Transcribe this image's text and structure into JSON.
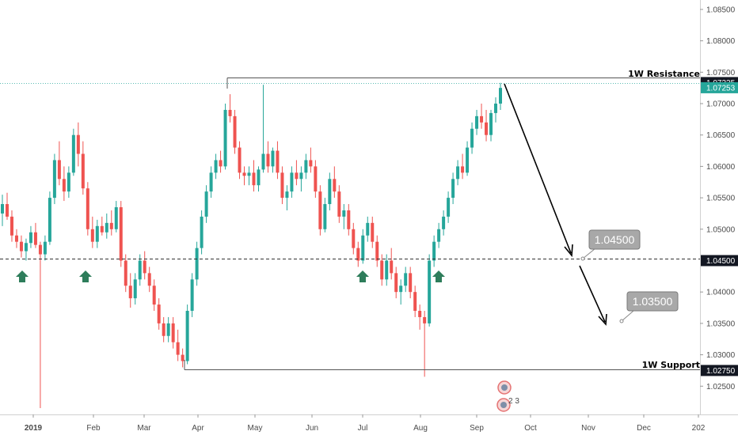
{
  "chart_data": {
    "type": "candlestick",
    "instrument_hint": "",
    "x_ticks": [
      "2019",
      "Feb",
      "Mar",
      "Apr",
      "May",
      "Jun",
      "Jul",
      "Aug",
      "Sep",
      "Oct",
      "Nov",
      "Dec",
      "202"
    ],
    "y_ticks": [
      "1.08500",
      "1.08000",
      "1.07500",
      "1.07000",
      "1.06500",
      "1.06000",
      "1.05500",
      "1.05000",
      "1.04000",
      "1.03500",
      "1.03000",
      "1.02500"
    ],
    "ylim": [
      1.0205,
      1.0865
    ],
    "grid": false,
    "price_tags": [
      {
        "label": "1.07335",
        "value": 1.07335,
        "style": "dark"
      },
      {
        "label": "1.07253",
        "value": 1.07253,
        "style": "teal"
      },
      {
        "label": "1.04500",
        "value": 1.045,
        "style": "dark"
      },
      {
        "label": "1.02750",
        "value": 1.0275,
        "style": "dark"
      }
    ],
    "levels": [
      {
        "name": "1W Resistance",
        "value": 1.07335
      },
      {
        "name": "1W Support",
        "value": 1.0275
      },
      {
        "name": "",
        "value": 1.045,
        "style": "dashed"
      }
    ],
    "callouts": [
      "1.04500",
      "1.03500"
    ],
    "markers": [
      "up-arrow",
      "up-arrow",
      "up-arrow",
      "up-arrow"
    ],
    "event_badge_text": "2 3",
    "colors": {
      "up": "#26a69a",
      "down": "#ef5350",
      "teal_tag": "#26a69a",
      "dark_tag": "#131722",
      "arrow_marker": "#2e7d5b",
      "callout_bg": "#a8a8a8"
    },
    "candles": [
      [
        1.0525,
        1.0555,
        1.0505,
        1.054
      ],
      [
        1.054,
        1.0558,
        1.0515,
        1.052
      ],
      [
        1.052,
        1.053,
        1.048,
        1.049
      ],
      [
        1.049,
        1.05,
        1.047,
        1.048
      ],
      [
        1.048,
        1.049,
        1.0455,
        1.0465
      ],
      [
        1.0465,
        1.0485,
        1.045,
        1.0478
      ],
      [
        1.0478,
        1.0505,
        1.047,
        1.0495
      ],
      [
        1.0495,
        1.051,
        1.047,
        1.0475
      ],
      [
        1.0475,
        1.048,
        1.0215,
        1.046
      ],
      [
        1.046,
        1.049,
        1.045,
        1.048
      ],
      [
        1.048,
        1.056,
        1.0475,
        1.055
      ],
      [
        1.055,
        1.062,
        1.054,
        1.061
      ],
      [
        1.061,
        1.064,
        1.057,
        1.058
      ],
      [
        1.058,
        1.06,
        1.0545,
        1.056
      ],
      [
        1.056,
        1.06,
        1.055,
        1.059
      ],
      [
        1.059,
        1.066,
        1.0585,
        1.065
      ],
      [
        1.065,
        1.067,
        1.06,
        1.062
      ],
      [
        1.062,
        1.064,
        1.0555,
        1.0565
      ],
      [
        1.0565,
        1.0575,
        1.049,
        1.05
      ],
      [
        1.05,
        1.052,
        1.047,
        1.048
      ],
      [
        1.048,
        1.0515,
        1.047,
        1.0505
      ],
      [
        1.0505,
        1.052,
        1.049,
        1.0495
      ],
      [
        1.0495,
        1.0525,
        1.0485,
        1.051
      ],
      [
        1.051,
        1.053,
        1.049,
        1.05
      ],
      [
        1.05,
        1.0545,
        1.0495,
        1.0535
      ],
      [
        1.0535,
        1.0545,
        1.044,
        1.045
      ],
      [
        1.045,
        1.046,
        1.04,
        1.041
      ],
      [
        1.041,
        1.043,
        1.0375,
        1.039
      ],
      [
        1.039,
        1.043,
        1.038,
        1.042
      ],
      [
        1.042,
        1.046,
        1.041,
        1.045
      ],
      [
        1.045,
        1.0465,
        1.042,
        1.043
      ],
      [
        1.043,
        1.044,
        1.04,
        1.041
      ],
      [
        1.041,
        1.042,
        1.037,
        1.038
      ],
      [
        1.038,
        1.039,
        1.034,
        1.035
      ],
      [
        1.035,
        1.036,
        1.032,
        1.033
      ],
      [
        1.033,
        1.036,
        1.032,
        1.035
      ],
      [
        1.035,
        1.036,
        1.031,
        1.032
      ],
      [
        1.032,
        1.034,
        1.029,
        1.03
      ],
      [
        1.03,
        1.031,
        1.028,
        1.029
      ],
      [
        1.029,
        1.038,
        1.0285,
        1.037
      ],
      [
        1.037,
        1.043,
        1.036,
        1.042
      ],
      [
        1.042,
        1.048,
        1.041,
        1.047
      ],
      [
        1.047,
        1.053,
        1.046,
        1.052
      ],
      [
        1.052,
        1.057,
        1.051,
        1.056
      ],
      [
        1.056,
        1.06,
        1.055,
        1.059
      ],
      [
        1.059,
        1.062,
        1.058,
        1.061
      ],
      [
        1.061,
        1.0625,
        1.059,
        1.06
      ],
      [
        1.06,
        1.07,
        1.0595,
        1.069
      ],
      [
        1.069,
        1.0715,
        1.067,
        1.068
      ],
      [
        1.068,
        1.069,
        1.062,
        1.063
      ],
      [
        1.063,
        1.064,
        1.058,
        1.059
      ],
      [
        1.059,
        1.06,
        1.057,
        1.0585
      ],
      [
        1.0585,
        1.06,
        1.057,
        1.059
      ],
      [
        1.059,
        1.061,
        1.056,
        1.057
      ],
      [
        1.057,
        1.06,
        1.056,
        1.0595
      ],
      [
        1.0595,
        1.073,
        1.059,
        1.062
      ],
      [
        1.062,
        1.064,
        1.059,
        1.06
      ],
      [
        1.06,
        1.063,
        1.059,
        1.0625
      ],
      [
        1.0625,
        1.064,
        1.058,
        1.059
      ],
      [
        1.059,
        1.06,
        1.054,
        1.055
      ],
      [
        1.055,
        1.057,
        1.053,
        1.056
      ],
      [
        1.056,
        1.06,
        1.055,
        1.059
      ],
      [
        1.059,
        1.061,
        1.057,
        1.058
      ],
      [
        1.058,
        1.06,
        1.056,
        1.059
      ],
      [
        1.059,
        1.062,
        1.058,
        1.061
      ],
      [
        1.061,
        1.063,
        1.059,
        1.06
      ],
      [
        1.06,
        1.061,
        1.055,
        1.056
      ],
      [
        1.056,
        1.057,
        1.049,
        1.05
      ],
      [
        1.05,
        1.055,
        1.0495,
        1.054
      ],
      [
        1.054,
        1.059,
        1.053,
        1.058
      ],
      [
        1.058,
        1.06,
        1.055,
        1.056
      ],
      [
        1.056,
        1.057,
        1.051,
        1.052
      ],
      [
        1.052,
        1.054,
        1.05,
        1.053
      ],
      [
        1.053,
        1.054,
        1.049,
        1.05
      ],
      [
        1.05,
        1.051,
        1.046,
        1.047
      ],
      [
        1.047,
        1.048,
        1.044,
        1.045
      ],
      [
        1.045,
        1.05,
        1.0445,
        1.049
      ],
      [
        1.049,
        1.052,
        1.048,
        1.051
      ],
      [
        1.051,
        1.052,
        1.047,
        1.048
      ],
      [
        1.048,
        1.049,
        1.044,
        1.045
      ],
      [
        1.045,
        1.046,
        1.041,
        1.042
      ],
      [
        1.042,
        1.046,
        1.041,
        1.045
      ],
      [
        1.045,
        1.047,
        1.042,
        1.043
      ],
      [
        1.043,
        1.044,
        1.039,
        1.04
      ],
      [
        1.04,
        1.042,
        1.038,
        1.041
      ],
      [
        1.041,
        1.044,
        1.04,
        1.043
      ],
      [
        1.043,
        1.044,
        1.039,
        1.04
      ],
      [
        1.04,
        1.041,
        1.036,
        1.037
      ],
      [
        1.037,
        1.038,
        1.034,
        1.036
      ],
      [
        1.036,
        1.037,
        1.0265,
        1.035
      ],
      [
        1.035,
        1.046,
        1.0345,
        1.045
      ],
      [
        1.045,
        1.049,
        1.044,
        1.048
      ],
      [
        1.048,
        1.051,
        1.047,
        1.05
      ],
      [
        1.05,
        1.053,
        1.049,
        1.052
      ],
      [
        1.052,
        1.056,
        1.051,
        1.055
      ],
      [
        1.055,
        1.059,
        1.054,
        1.058
      ],
      [
        1.058,
        1.061,
        1.057,
        1.06
      ],
      [
        1.06,
        1.062,
        1.058,
        1.059
      ],
      [
        1.059,
        1.064,
        1.0585,
        1.063
      ],
      [
        1.063,
        1.067,
        1.062,
        1.066
      ],
      [
        1.066,
        1.069,
        1.065,
        1.068
      ],
      [
        1.068,
        1.07,
        1.066,
        1.067
      ],
      [
        1.067,
        1.069,
        1.064,
        1.065
      ],
      [
        1.065,
        1.069,
        1.064,
        1.0685
      ],
      [
        1.0685,
        1.071,
        1.067,
        1.07
      ],
      [
        1.07,
        1.0733,
        1.069,
        1.0725
      ]
    ]
  }
}
